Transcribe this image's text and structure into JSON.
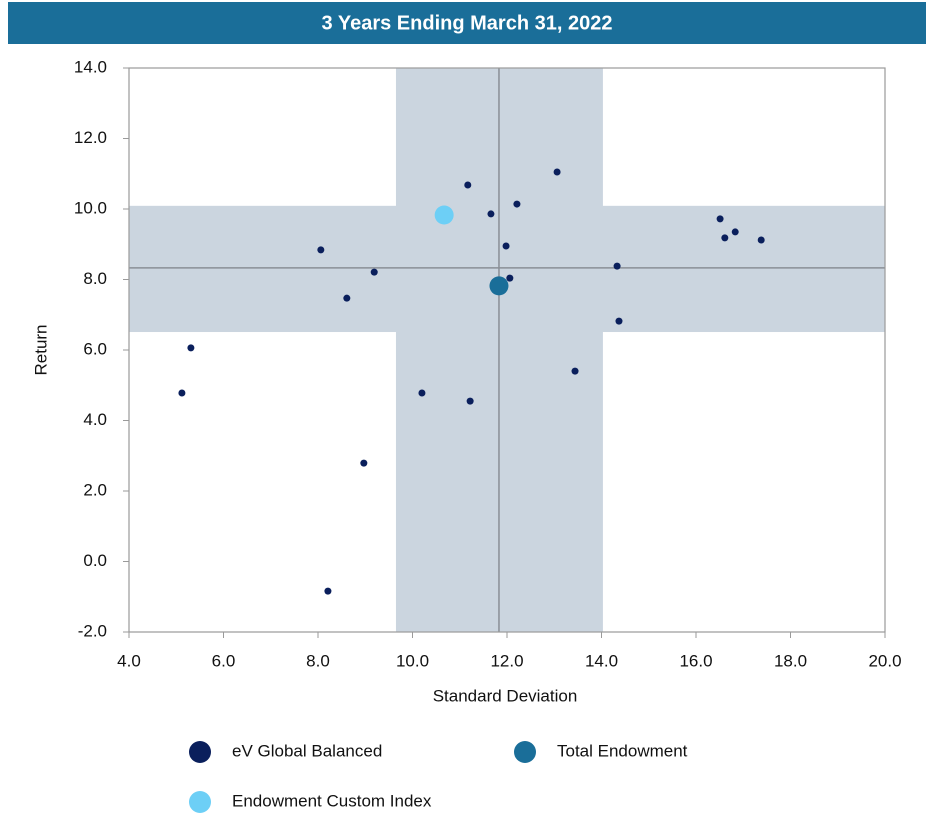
{
  "chart_data": {
    "type": "scatter",
    "title": "3 Years Ending March 31, 2022",
    "x_label": "Standard Deviation",
    "y_label": "Return",
    "xlim": [
      4.0,
      20.0
    ],
    "ylim": [
      -2.0,
      14.0
    ],
    "xticks": [
      {
        "value": 4,
        "label": "4.0"
      },
      {
        "value": 6,
        "label": "6.0"
      },
      {
        "value": 8,
        "label": "8.0"
      },
      {
        "value": 10,
        "label": "10.0"
      },
      {
        "value": 12,
        "label": "12.0"
      },
      {
        "value": 14,
        "label": "14.0"
      },
      {
        "value": 16,
        "label": "16.0"
      },
      {
        "value": 18,
        "label": "18.0"
      },
      {
        "value": 20,
        "label": "20.0"
      }
    ],
    "yticks": [
      {
        "value": -2,
        "label": "-2.0"
      },
      {
        "value": 0,
        "label": "0.0"
      },
      {
        "value": 2,
        "label": "2.0"
      },
      {
        "value": 4,
        "label": "4.0"
      },
      {
        "value": 6,
        "label": "6.0"
      },
      {
        "value": 8,
        "label": "8.0"
      },
      {
        "value": 10,
        "label": "10.0"
      },
      {
        "value": 12,
        "label": "12.0"
      },
      {
        "value": 14,
        "label": "14.0"
      }
    ],
    "x_band": [
      9.65,
      14.03
    ],
    "y_band": [
      6.51,
      10.09
    ],
    "x_median": 11.83,
    "y_median": 8.33,
    "band_color": "#cbd5df",
    "series": [
      {
        "name": "eV Global Balanced",
        "color": "#0a1f5c",
        "marker_size": 3.5,
        "x": [
          8.06,
          8.61,
          9.19,
          5.12,
          5.31,
          8.97,
          8.21,
          10.2,
          11.17,
          11.22,
          11.66,
          11.98,
          12.06,
          12.21,
          13.06,
          13.44,
          14.33,
          14.37,
          16.51,
          16.61,
          16.83,
          17.38
        ],
        "values": [
          8.84,
          7.47,
          8.21,
          4.78,
          6.06,
          2.79,
          -0.84,
          4.78,
          10.68,
          4.55,
          9.86,
          8.95,
          8.04,
          10.14,
          11.05,
          5.4,
          8.38,
          6.82,
          9.72,
          9.18,
          9.35,
          9.12
        ]
      },
      {
        "name": "Total Endowment",
        "color": "#1a6e99",
        "marker_size": 9.5,
        "x": [
          11.83
        ],
        "values": [
          7.82
        ]
      },
      {
        "name": "Endowment Custom Index",
        "color": "#6dcff6",
        "marker_size": 9.5,
        "x": [
          10.67
        ],
        "values": [
          9.83
        ]
      }
    ]
  }
}
